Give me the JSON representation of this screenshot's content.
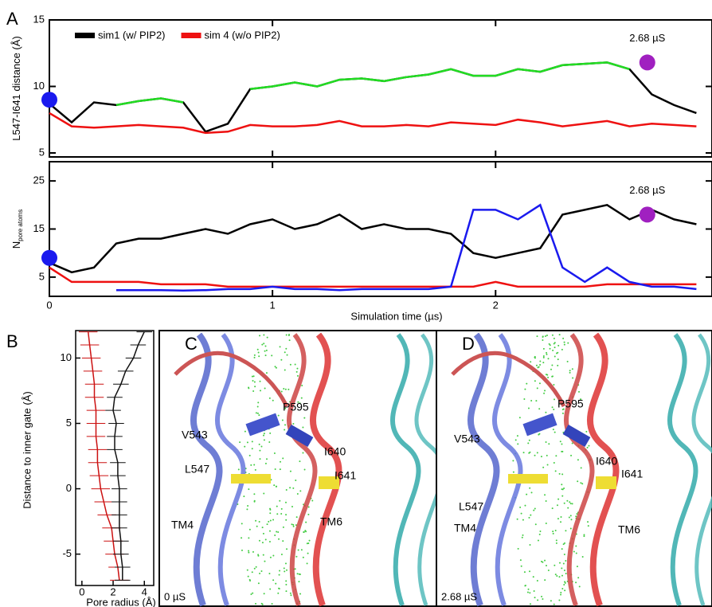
{
  "chart_data": [
    {
      "type": "line",
      "panel": "A",
      "ylabel": "L547-I641 distance (Å)",
      "x": [
        0,
        0.1,
        0.2,
        0.3,
        0.4,
        0.5,
        0.6,
        0.7,
        0.8,
        0.9,
        1.0,
        1.1,
        1.2,
        1.3,
        1.4,
        1.5,
        1.6,
        1.7,
        1.8,
        1.9,
        2.0,
        2.1,
        2.2,
        2.3,
        2.4,
        2.5,
        2.6,
        2.7,
        2.8,
        2.9
      ],
      "xlim": [
        0,
        2.97
      ],
      "xticks": [
        0,
        1,
        2
      ],
      "ylim": [
        4.7,
        15
      ],
      "yticks": [
        5,
        10,
        15
      ],
      "series": [
        {
          "name": "sim1 (w/ PIP2)",
          "color": "#000000",
          "values": [
            8.7,
            7.3,
            8.8,
            8.6,
            8.9,
            9.1,
            8.8,
            6.6,
            7.2,
            9.8,
            10.0,
            10.3,
            10.0,
            10.5,
            10.6,
            10.4,
            10.7,
            10.9,
            11.3,
            10.8,
            10.8,
            11.3,
            11.1,
            11.6,
            11.7,
            11.8,
            11.3,
            9.4,
            8.6,
            8.0
          ]
        },
        {
          "color": "#22dd22",
          "values": [
            null,
            null,
            null,
            8.6,
            8.9,
            9.1,
            8.8,
            null,
            null,
            9.8,
            10.0,
            10.3,
            10.0,
            10.5,
            10.6,
            10.4,
            10.7,
            10.9,
            11.3,
            10.8,
            10.8,
            11.3,
            11.1,
            11.6,
            11.7,
            11.8,
            11.3,
            null,
            null,
            null
          ]
        },
        {
          "name": "sim 4 (w/o PIP2)",
          "color": "#ee1111",
          "values": [
            8.0,
            7.0,
            6.9,
            7.0,
            7.1,
            7.0,
            6.9,
            6.5,
            6.6,
            7.1,
            7.0,
            7.0,
            7.1,
            7.4,
            7.0,
            7.0,
            7.1,
            7.0,
            7.3,
            7.2,
            7.1,
            7.5,
            7.3,
            7.0,
            7.2,
            7.4,
            7.0,
            7.2,
            7.1,
            7.0
          ]
        }
      ],
      "markers": [
        {
          "x": 0,
          "y": 9.0,
          "color": "#1a1aee"
        },
        {
          "x": 2.68,
          "y": 11.8,
          "color": "#a020c0",
          "label": "2.68 µS"
        }
      ]
    },
    {
      "type": "line",
      "ylabel": "N",
      "ylabel_sub": "pore atoms",
      "xlabel": "Simulation time (µs)",
      "x": [
        0,
        0.1,
        0.2,
        0.3,
        0.4,
        0.5,
        0.6,
        0.7,
        0.8,
        0.9,
        1.0,
        1.1,
        1.2,
        1.3,
        1.4,
        1.5,
        1.6,
        1.7,
        1.8,
        1.9,
        2.0,
        2.1,
        2.2,
        2.3,
        2.4,
        2.5,
        2.6,
        2.7,
        2.8,
        2.9
      ],
      "xlim": [
        0,
        2.97
      ],
      "xticks": [
        0,
        1,
        2
      ],
      "ylim": [
        1,
        29
      ],
      "yticks": [
        5,
        15,
        25
      ],
      "series": [
        {
          "color": "#000000",
          "values": [
            8,
            6,
            7,
            12,
            13,
            13,
            14,
            15,
            14,
            16,
            17,
            15,
            16,
            18,
            15,
            16,
            15,
            15,
            14,
            10,
            9,
            10,
            11,
            18,
            19,
            20,
            17,
            19,
            17,
            16
          ]
        },
        {
          "color": "#ee1111",
          "values": [
            7,
            4,
            4,
            4,
            4,
            3.5,
            3.5,
            3.5,
            3,
            3,
            3,
            3,
            3,
            3,
            3,
            3,
            3,
            3,
            3,
            3,
            4,
            3,
            3,
            3,
            3,
            3.5,
            3.5,
            3.5,
            3.5,
            3.5
          ]
        },
        {
          "color": "#1a1aee",
          "values": [
            null,
            null,
            null,
            2.3,
            2.3,
            2.3,
            2.2,
            2.3,
            2.5,
            2.5,
            3,
            2.5,
            2.5,
            2.3,
            2.5,
            2.5,
            2.5,
            2.5,
            3,
            19,
            19,
            17,
            20,
            7,
            4,
            7,
            4,
            3,
            3,
            2.5
          ]
        }
      ],
      "markers": [
        {
          "x": 0,
          "y": 9,
          "color": "#1a1aee"
        },
        {
          "x": 2.68,
          "y": 18,
          "color": "#a020c0",
          "label": "2.68 µS"
        }
      ]
    },
    {
      "type": "profile",
      "panel": "B",
      "ylabel": "Distance to inner gate (Å)",
      "xlabel": "Pore radius (Å)",
      "y": [
        -7,
        -6,
        -5,
        -4,
        -3,
        -2,
        -1,
        0,
        1,
        2,
        3,
        4,
        5,
        6,
        7,
        8,
        9,
        10,
        11,
        12
      ],
      "xlim": [
        -0.4,
        4.6
      ],
      "xticks": [
        0,
        2,
        4
      ],
      "ylim": [
        -7.4,
        12.1
      ],
      "yticks": [
        -5,
        0,
        5,
        10
      ],
      "series": [
        {
          "color": "#cc1111",
          "values": [
            2.4,
            2.3,
            2.1,
            2.0,
            1.9,
            1.6,
            1.4,
            1.2,
            1.1,
            1.0,
            1.0,
            0.9,
            0.9,
            0.9,
            0.8,
            0.8,
            0.7,
            0.6,
            0.5,
            0.4
          ],
          "errors": [
            0.6,
            0.6,
            0.6,
            0.6,
            0.6,
            0.6,
            0.6,
            0.6,
            0.6,
            0.6,
            0.6,
            0.6,
            0.6,
            0.6,
            0.6,
            0.6,
            0.6,
            0.6,
            0.6,
            0.6
          ]
        },
        {
          "color": "#111111",
          "values": [
            2.6,
            2.6,
            2.5,
            2.5,
            2.4,
            2.4,
            2.4,
            2.4,
            2.3,
            2.3,
            2.1,
            2.1,
            2.2,
            2.0,
            2.1,
            2.5,
            2.8,
            3.3,
            3.6,
            4.0
          ],
          "errors": [
            0.5,
            0.5,
            0.5,
            0.5,
            0.5,
            0.5,
            0.5,
            0.5,
            0.5,
            0.5,
            0.5,
            0.5,
            0.5,
            0.5,
            0.5,
            0.5,
            0.5,
            0.5,
            0.5,
            0.5
          ]
        }
      ]
    }
  ],
  "structures": [
    {
      "panel": "C",
      "labels": [
        "P595",
        "V543",
        "I640",
        "L547",
        "I641",
        "TM4",
        "TM6"
      ],
      "time": "0 µS"
    },
    {
      "panel": "D",
      "labels": [
        "P595",
        "V543",
        "I640",
        "L547",
        "I641",
        "TM4",
        "TM6"
      ],
      "time": "2.68 µS"
    }
  ]
}
